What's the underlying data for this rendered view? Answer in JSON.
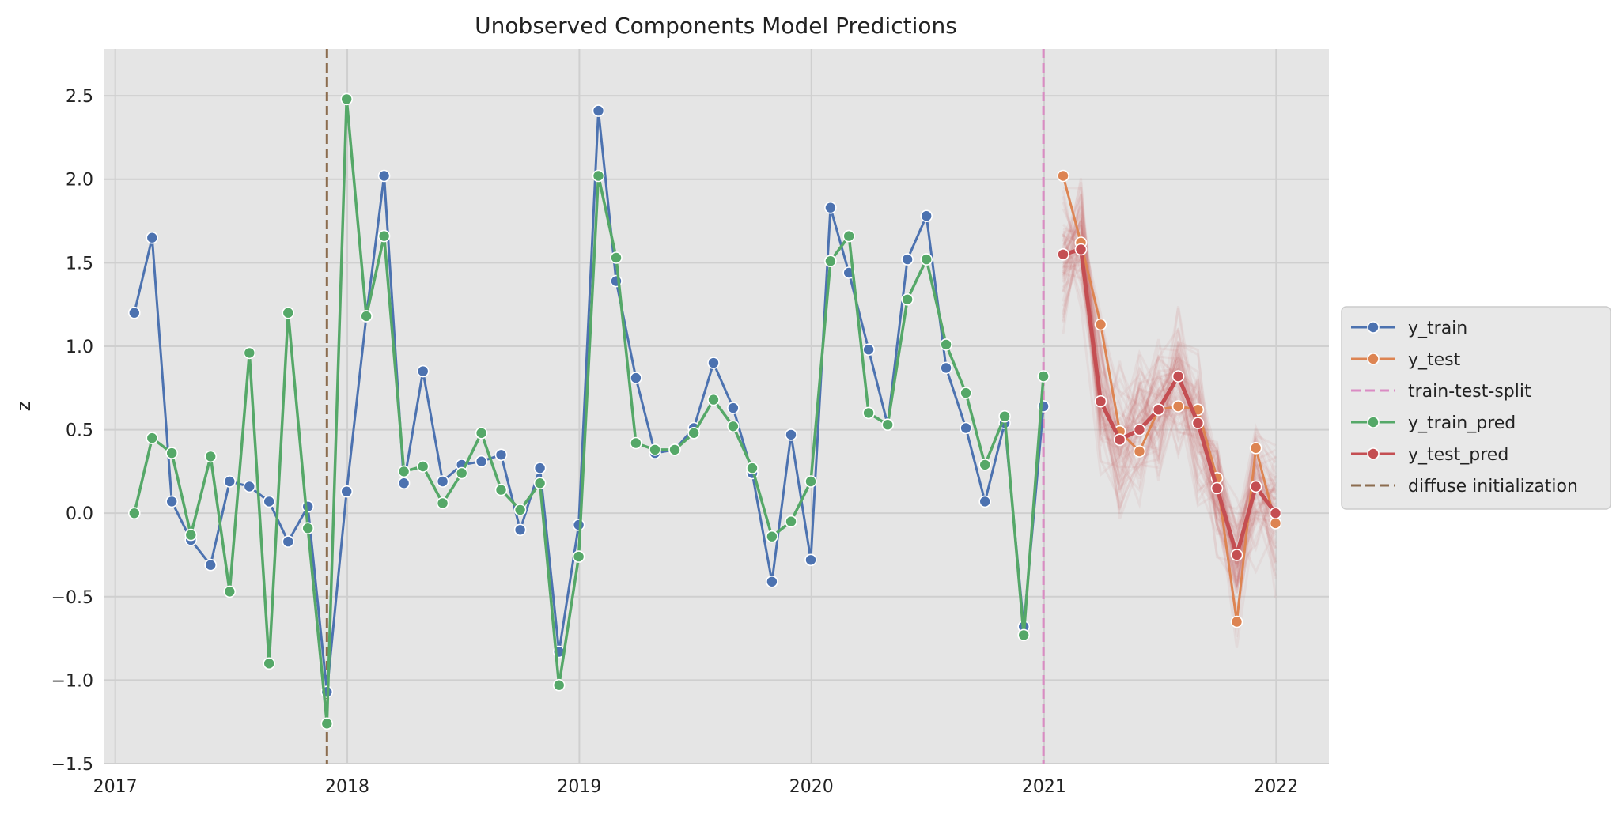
{
  "chart_data": {
    "type": "line",
    "title": "Unobserved Components Model Predictions",
    "xlabel": "",
    "ylabel": "z",
    "xlim": [
      "2016-12-15",
      "2022-03-25"
    ],
    "ylim": [
      -1.5,
      2.78
    ],
    "x_ticks": [
      "2017-01-01",
      "2018-01-01",
      "2019-01-01",
      "2020-01-01",
      "2021-01-01",
      "2022-01-01"
    ],
    "x_tick_labels": [
      "2017",
      "2018",
      "2019",
      "2020",
      "2021",
      "2022"
    ],
    "y_ticks": [
      -1.5,
      -1.0,
      -0.5,
      0.0,
      0.5,
      1.0,
      1.5,
      2.0,
      2.5
    ],
    "y_tick_labels": [
      "−1.5",
      "−1.0",
      "−0.5",
      "0.0",
      "0.5",
      "1.0",
      "1.5",
      "2.0",
      "2.5"
    ],
    "grid": true,
    "legend_position": "outside-right",
    "colors": {
      "background": "#e5e5e5",
      "grid": "#ffffff",
      "y_train": "#4c72b0",
      "y_test": "#dd8452",
      "train_test_split": "#da8bc3",
      "y_train_pred": "#55a868",
      "y_test_pred": "#c44e52",
      "diffuse_initialization": "#8c6d4f"
    },
    "legend": [
      {
        "key": "y_train",
        "label": "y_train",
        "style": "line-marker"
      },
      {
        "key": "y_test",
        "label": "y_test",
        "style": "line-marker"
      },
      {
        "key": "train_test_split",
        "label": "train-test-split",
        "style": "dashed"
      },
      {
        "key": "y_train_pred",
        "label": "y_train_pred",
        "style": "line-marker"
      },
      {
        "key": "y_test_pred",
        "label": "y_test_pred",
        "style": "line-marker"
      },
      {
        "key": "diffuse_initialization",
        "label": "diffuse initialization",
        "style": "dashed"
      }
    ],
    "train_dates": [
      "2017-01-31",
      "2017-02-28",
      "2017-03-31",
      "2017-04-30",
      "2017-05-31",
      "2017-06-30",
      "2017-07-31",
      "2017-08-31",
      "2017-09-30",
      "2017-10-31",
      "2017-11-30",
      "2017-12-31",
      "2018-01-31",
      "2018-02-28",
      "2018-03-31",
      "2018-04-30",
      "2018-05-31",
      "2018-06-30",
      "2018-07-31",
      "2018-08-31",
      "2018-09-30",
      "2018-10-31",
      "2018-11-30",
      "2018-12-31",
      "2019-01-31",
      "2019-02-28",
      "2019-03-31",
      "2019-04-30",
      "2019-05-31",
      "2019-06-30",
      "2019-07-31",
      "2019-08-31",
      "2019-09-30",
      "2019-10-31",
      "2019-11-30",
      "2019-12-31",
      "2020-01-31",
      "2020-02-29",
      "2020-03-31",
      "2020-04-30",
      "2020-05-31",
      "2020-06-30",
      "2020-07-31",
      "2020-08-31",
      "2020-09-30",
      "2020-10-31",
      "2020-11-30",
      "2020-12-31"
    ],
    "test_dates": [
      "2021-01-31",
      "2021-02-28",
      "2021-03-31",
      "2021-04-30",
      "2021-05-31",
      "2021-06-30",
      "2021-07-31",
      "2021-08-31",
      "2021-09-30",
      "2021-10-31",
      "2021-11-30",
      "2021-12-31"
    ],
    "series": [
      {
        "key": "y_train",
        "name": "y_train",
        "x": "train_dates",
        "values": [
          1.2,
          1.65,
          0.07,
          -0.16,
          -0.31,
          0.19,
          0.16,
          0.07,
          -0.17,
          0.04,
          -1.07,
          0.13,
          1.18,
          2.02,
          0.18,
          0.85,
          0.19,
          0.29,
          0.31,
          0.35,
          -0.1,
          0.27,
          -0.83,
          -0.07,
          2.41,
          1.39,
          0.81,
          0.36,
          0.38,
          0.51,
          0.9,
          0.63,
          0.24,
          -0.41,
          0.47,
          -0.28,
          1.83,
          1.44,
          0.98,
          0.53,
          1.52,
          1.78,
          0.87,
          0.51,
          0.07,
          0.54,
          -0.68,
          0.64
        ]
      },
      {
        "key": "y_train_pred",
        "name": "y_train_pred",
        "x": "train_dates",
        "values": [
          0.0,
          0.45,
          0.36,
          -0.13,
          0.34,
          -0.47,
          0.96,
          -0.9,
          1.2,
          -0.09,
          -1.26,
          2.48,
          1.18,
          1.66,
          0.25,
          0.28,
          0.06,
          0.24,
          0.48,
          0.14,
          0.02,
          0.18,
          -1.03,
          -0.26,
          2.02,
          1.53,
          0.42,
          0.38,
          0.38,
          0.48,
          0.68,
          0.52,
          0.27,
          -0.14,
          -0.05,
          0.19,
          1.51,
          1.66,
          0.6,
          0.53,
          1.28,
          1.52,
          1.01,
          0.72,
          0.29,
          0.58,
          -0.73,
          0.82
        ]
      },
      {
        "key": "y_test",
        "name": "y_test",
        "x": "test_dates",
        "values": [
          2.02,
          1.62,
          1.13,
          0.49,
          0.37,
          0.62,
          0.64,
          0.62,
          0.21,
          -0.65,
          0.39,
          -0.06
        ]
      },
      {
        "key": "y_test_pred",
        "name": "y_test_pred",
        "x": "test_dates",
        "values": [
          1.55,
          1.58,
          0.67,
          0.44,
          0.5,
          0.62,
          0.82,
          0.54,
          0.15,
          -0.25,
          0.16,
          0.0
        ]
      }
    ],
    "vlines": [
      {
        "key": "diffuse_initialization",
        "x": "2017-11-30"
      },
      {
        "key": "train_test_split",
        "x": "2020-12-31"
      }
    ],
    "posterior_samples": {
      "x": "test_dates",
      "count": 60,
      "center": "y_test_pred",
      "spread": 0.28
    }
  }
}
